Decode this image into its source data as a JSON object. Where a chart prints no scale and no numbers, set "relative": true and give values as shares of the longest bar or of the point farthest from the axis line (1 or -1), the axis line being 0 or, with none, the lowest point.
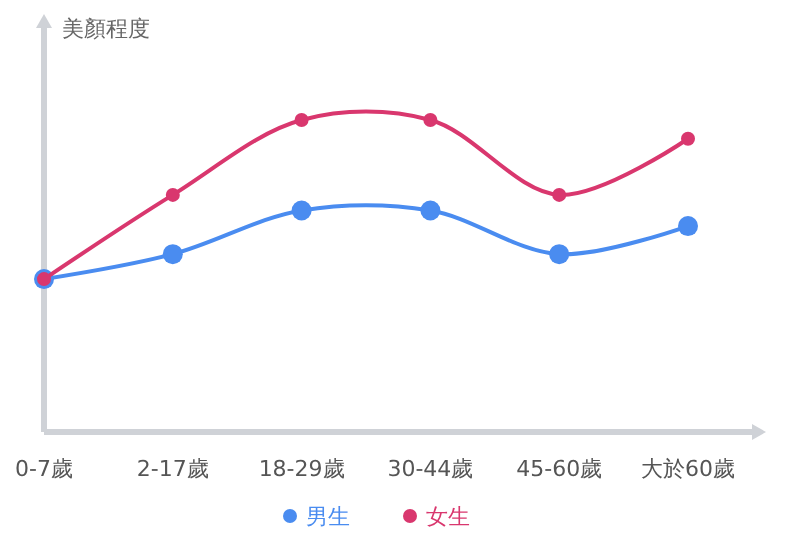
{
  "chart_data": {
    "type": "line",
    "ylabel": "美顏程度",
    "relative": true,
    "categories": [
      "0-7歲",
      "2-17歲",
      "18-29歲",
      "30-44歲",
      "45-60歲",
      "大於60歲"
    ],
    "series": [
      {
        "name": "男生",
        "color": "#4a8cf0",
        "values": [
          0.49,
          0.57,
          0.71,
          0.71,
          0.57,
          0.66
        ]
      },
      {
        "name": "女生",
        "color": "#d9376e",
        "values": [
          0.49,
          0.76,
          1,
          1,
          0.76,
          0.94
        ]
      }
    ],
    "marker": "circle",
    "legend": "bottom"
  }
}
